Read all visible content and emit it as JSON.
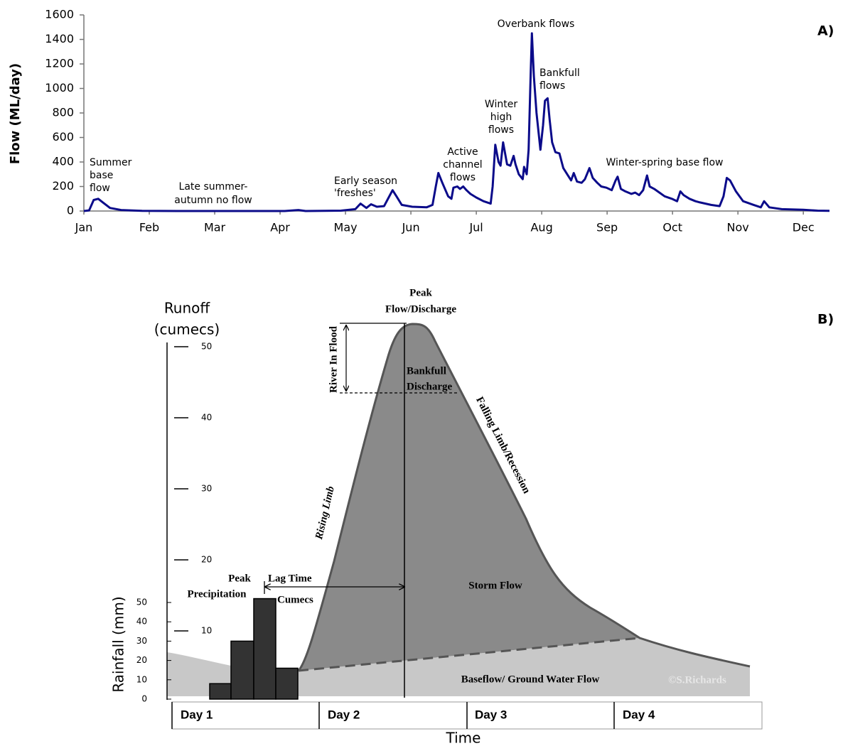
{
  "chart_data": [
    {
      "type": "line",
      "label": "A)",
      "y_label": "Flow (ML/day)",
      "xlim": [
        0,
        11.4
      ],
      "xticks": [
        {
          "value": 0,
          "label": "Jan"
        },
        {
          "value": 1,
          "label": "Feb"
        },
        {
          "value": 2,
          "label": "Mar"
        },
        {
          "value": 3,
          "label": "Apr"
        },
        {
          "value": 4,
          "label": "May"
        },
        {
          "value": 5,
          "label": "Jun"
        },
        {
          "value": 6,
          "label": "Jul"
        },
        {
          "value": 7,
          "label": "Aug"
        },
        {
          "value": 8,
          "label": "Sep"
        },
        {
          "value": 9,
          "label": "Oct"
        },
        {
          "value": 10,
          "label": "Nov"
        },
        {
          "value": 11,
          "label": "Dec"
        }
      ],
      "ylim": [
        0,
        1600
      ],
      "yticks": [
        0,
        200,
        400,
        600,
        800,
        1000,
        1200,
        1400,
        1600
      ],
      "x": [
        0,
        0.08,
        0.15,
        0.22,
        0.29,
        0.4,
        0.57,
        0.89,
        1.43,
        3.07,
        3.28,
        3.39,
        3.93,
        4.15,
        4.23,
        4.32,
        4.39,
        4.48,
        4.59,
        4.66,
        4.72,
        4.78,
        4.86,
        5.02,
        5.24,
        5.33,
        5.38,
        5.42,
        5.48,
        5.57,
        5.62,
        5.65,
        5.71,
        5.75,
        5.8,
        5.85,
        5.91,
        6.0,
        6.11,
        6.22,
        6.25,
        6.29,
        6.34,
        6.37,
        6.41,
        6.47,
        6.52,
        6.57,
        6.6,
        6.65,
        6.71,
        6.73,
        6.77,
        6.8,
        6.83,
        6.85,
        6.88,
        6.92,
        6.98,
        7.02,
        7.05,
        7.09,
        7.12,
        7.16,
        7.21,
        7.27,
        7.33,
        7.39,
        7.45,
        7.49,
        7.54,
        7.61,
        7.66,
        7.73,
        7.78,
        7.85,
        7.91,
        7.99,
        8.07,
        8.13,
        8.16,
        8.21,
        8.28,
        8.37,
        8.43,
        8.49,
        8.55,
        8.61,
        8.65,
        8.72,
        8.8,
        8.88,
        8.99,
        9.07,
        9.12,
        9.17,
        9.26,
        9.35,
        9.42,
        9.59,
        9.72,
        9.78,
        9.83,
        9.88,
        9.97,
        10.08,
        10.24,
        10.35,
        10.4,
        10.48,
        10.67,
        11.0,
        11.22,
        11.4
      ],
      "series": [
        {
          "color": "#0b0b8a",
          "values": [
            0,
            5,
            90,
            100,
            70,
            25,
            8,
            2,
            0,
            0,
            8,
            0,
            3,
            15,
            60,
            25,
            55,
            35,
            40,
            110,
            170,
            120,
            50,
            35,
            30,
            50,
            200,
            310,
            230,
            120,
            100,
            190,
            200,
            180,
            200,
            170,
            140,
            110,
            80,
            60,
            200,
            540,
            400,
            370,
            560,
            380,
            370,
            450,
            380,
            300,
            260,
            360,
            300,
            500,
            1100,
            1450,
            1100,
            800,
            500,
            700,
            900,
            920,
            750,
            560,
            480,
            470,
            350,
            300,
            250,
            310,
            240,
            230,
            260,
            350,
            270,
            230,
            200,
            190,
            170,
            250,
            280,
            180,
            160,
            140,
            150,
            130,
            170,
            290,
            200,
            180,
            150,
            120,
            100,
            80,
            160,
            130,
            100,
            80,
            70,
            50,
            40,
            120,
            270,
            250,
            160,
            80,
            50,
            30,
            80,
            30,
            15,
            10,
            3,
            2
          ]
        }
      ],
      "annotations": [
        [
          "Summer",
          "base",
          "flow"
        ],
        [
          "Late summer-",
          "autumn  no flow"
        ],
        [
          "Early season",
          "'freshes'"
        ],
        [
          "Active",
          "channel",
          "flows"
        ],
        [
          "Winter",
          "high",
          "flows"
        ],
        [
          "Overbank  flows"
        ],
        [
          "Bankfull",
          "flows"
        ],
        [
          "Winter-spring  base flow"
        ]
      ]
    },
    {
      "type": "hydrograph",
      "label": "B)",
      "y_label": [
        "Runoff",
        "(cumecs)"
      ],
      "ylim": [
        0,
        50
      ],
      "yticks": [
        10,
        20,
        30,
        40,
        50
      ],
      "y2_label": "Rainfall (mm)",
      "y2lim": [
        0,
        50
      ],
      "y2ticks": [
        0,
        10,
        20,
        30,
        40,
        50
      ],
      "rainfall": [
        8,
        30,
        52,
        16
      ],
      "rainfall_color": "#333333",
      "categories": [
        "Day 1",
        "Day 2",
        "Day 3",
        "Day 4"
      ],
      "x_label": "Time",
      "annotations": [
        [
          "Peak",
          "Flow/Discharge"
        ],
        [
          "River In Flood"
        ],
        [
          "Bankfull",
          "Discharge"
        ],
        [
          "Falling Limb/Recession"
        ],
        [
          "Rising Limb"
        ],
        [
          "Peak",
          "Precipitation"
        ],
        [
          "Lag Time"
        ],
        [
          "Cumecs"
        ],
        [
          "Storm Flow"
        ],
        [
          "Baseflow/ Ground Water Flow"
        ],
        [
          "©S.Richards"
        ]
      ]
    }
  ]
}
